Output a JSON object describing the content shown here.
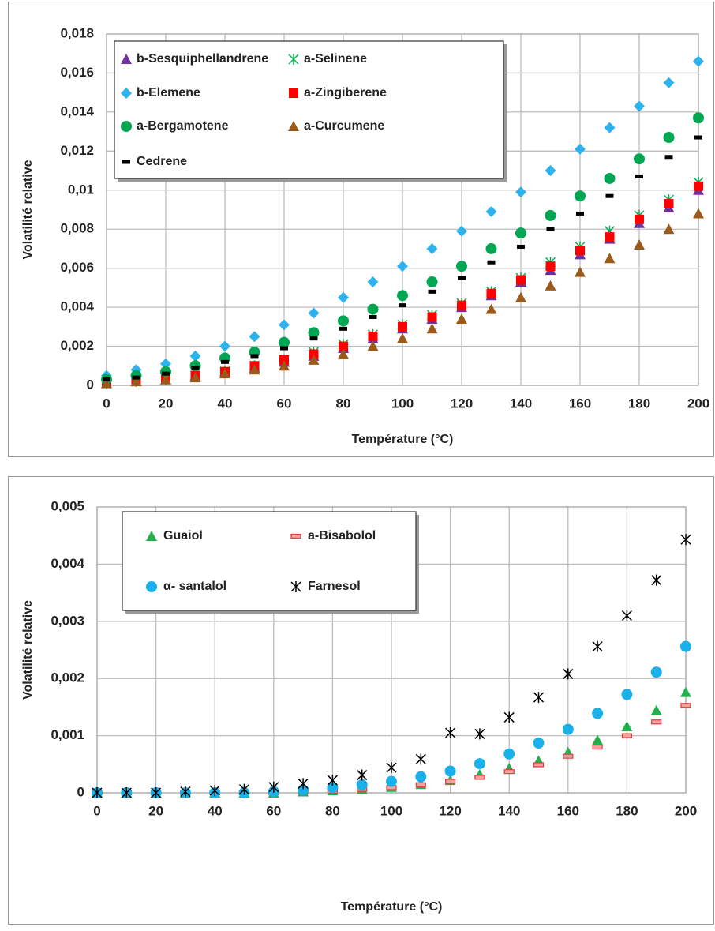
{
  "chart_data": [
    {
      "type": "scatter",
      "xlabel": "Température (°C)",
      "ylabel": "Volatilité relative",
      "x": [
        0,
        10,
        20,
        30,
        40,
        50,
        60,
        70,
        80,
        90,
        100,
        110,
        120,
        130,
        140,
        150,
        160,
        170,
        180,
        190,
        200
      ],
      "xlim": [
        0,
        200
      ],
      "xticks": [
        0,
        20,
        40,
        60,
        80,
        100,
        120,
        140,
        160,
        180,
        200
      ],
      "ylim": [
        0,
        0.018
      ],
      "yticks": [
        0,
        {
          "value": 0.002,
          "label": "0,002"
        },
        {
          "value": 0.004,
          "label": "0,004"
        },
        {
          "value": 0.006,
          "label": "0,006"
        },
        {
          "value": 0.008,
          "label": "0,008"
        },
        {
          "value": 0.01,
          "label": "0,01"
        },
        {
          "value": 0.012,
          "label": "0,012"
        },
        {
          "value": 0.014,
          "label": "0,014"
        },
        {
          "value": 0.016,
          "label": "0,016"
        },
        {
          "value": 0.018,
          "label": "0,018"
        }
      ],
      "grid": true,
      "legend": "upper left",
      "series": [
        {
          "name": "b-Sesquiphellandrene",
          "color": "#7030a0",
          "marker": "triangle",
          "values": [
            0.0001,
            0.0002,
            0.0003,
            0.0005,
            0.0007,
            0.0009,
            0.0012,
            0.0015,
            0.0019,
            0.0024,
            0.0029,
            0.0034,
            0.004,
            0.0046,
            0.0053,
            0.0059,
            0.0067,
            0.0075,
            0.0083,
            0.0091,
            0.01
          ]
        },
        {
          "name": "a-Selinene",
          "color": "#00b050",
          "marker": "asterisk",
          "values": [
            0.0001,
            0.0002,
            0.0003,
            0.0005,
            0.0007,
            0.001,
            0.0013,
            0.0017,
            0.0021,
            0.0026,
            0.0031,
            0.0036,
            0.0042,
            0.0048,
            0.0055,
            0.0063,
            0.0071,
            0.0079,
            0.0087,
            0.0095,
            0.0104
          ]
        },
        {
          "name": "b-Elemene",
          "color": "#2eb2ee",
          "marker": "diamond",
          "values": [
            0.0005,
            0.0008,
            0.0011,
            0.0015,
            0.002,
            0.0025,
            0.0031,
            0.0037,
            0.0045,
            0.0053,
            0.0061,
            0.007,
            0.0079,
            0.0089,
            0.0099,
            0.011,
            0.0121,
            0.0132,
            0.0143,
            0.0155,
            0.0166
          ]
        },
        {
          "name": "a-Zingiberene",
          "color": "#ff0000",
          "marker": "square",
          "values": [
            0.0001,
            0.0002,
            0.0003,
            0.0005,
            0.0007,
            0.001,
            0.0013,
            0.0016,
            0.002,
            0.0025,
            0.003,
            0.0035,
            0.0041,
            0.0047,
            0.0054,
            0.0061,
            0.0069,
            0.0076,
            0.0085,
            0.0093,
            0.0102
          ]
        },
        {
          "name": "a-Bergamotene",
          "color": "#00a651",
          "marker": "circle",
          "values": [
            0.0003,
            0.0005,
            0.0007,
            0.001,
            0.0014,
            0.0017,
            0.0022,
            0.0027,
            0.0033,
            0.0039,
            0.0046,
            0.0053,
            0.0061,
            0.007,
            0.0078,
            0.0087,
            0.0097,
            0.0106,
            0.0116,
            0.0127,
            0.0137
          ]
        },
        {
          "name": "a-Curcumene",
          "color": "#9c5a1a",
          "marker": "triangle",
          "values": [
            0.0001,
            0.0002,
            0.0003,
            0.0004,
            0.0006,
            0.0008,
            0.001,
            0.0013,
            0.0016,
            0.002,
            0.0024,
            0.0029,
            0.0034,
            0.0039,
            0.0045,
            0.0051,
            0.0058,
            0.0065,
            0.0072,
            0.008,
            0.0088
          ]
        },
        {
          "name": "Cedrene",
          "color": "#000000",
          "marker": "dash",
          "values": [
            0.0003,
            0.0004,
            0.0006,
            0.0009,
            0.0012,
            0.0015,
            0.0019,
            0.0024,
            0.0029,
            0.0035,
            0.0041,
            0.0048,
            0.0055,
            0.0063,
            0.0071,
            0.008,
            0.0088,
            0.0097,
            0.0107,
            0.0117,
            0.0127
          ]
        }
      ]
    },
    {
      "type": "scatter",
      "xlabel": "Température (°C)",
      "ylabel": "Volatilité relative",
      "x": [
        0,
        10,
        20,
        30,
        40,
        50,
        60,
        70,
        80,
        90,
        100,
        110,
        120,
        130,
        140,
        150,
        160,
        170,
        180,
        190,
        200
      ],
      "xlim": [
        0,
        200
      ],
      "xticks": [
        0,
        20,
        40,
        60,
        80,
        100,
        120,
        140,
        160,
        180,
        200
      ],
      "ylim": [
        0,
        0.005
      ],
      "yticks": [
        0,
        {
          "value": 0.001,
          "label": "0,001"
        },
        {
          "value": 0.002,
          "label": "0,002"
        },
        {
          "value": 0.003,
          "label": "0,003"
        },
        {
          "value": 0.004,
          "label": "0,004"
        },
        {
          "value": 0.005,
          "label": "0,005"
        }
      ],
      "grid": true,
      "legend": "upper left",
      "series": [
        {
          "name": "Guaiol",
          "color": "#22b04c",
          "marker": "triangle",
          "values": [
            0,
            0,
            0,
            0,
            0,
            0,
            0,
            2e-05,
            4e-05,
            6e-05,
            0.0001,
            0.00015,
            0.00022,
            0.00032,
            0.00043,
            0.00056,
            0.00071,
            0.00092,
            0.00116,
            0.00144,
            0.00176
          ]
        },
        {
          "name": "a-Bisabolol",
          "color": "#e03c3c",
          "marker": "outlined-dash",
          "values": [
            0,
            0,
            0,
            0,
            0,
            0,
            0,
            2e-05,
            3e-05,
            6e-05,
            9e-05,
            0.00014,
            0.0002,
            0.00027,
            0.00037,
            0.00049,
            0.00064,
            0.0008,
            0.001,
            0.00124,
            0.00153
          ]
        },
        {
          "name": "α- santalol",
          "color": "#1ab0ea",
          "marker": "circle",
          "values": [
            0,
            0,
            0,
            0,
            0,
            0,
            2e-05,
            5e-05,
            9e-05,
            0.00014,
            0.0002,
            0.00028,
            0.00038,
            0.00051,
            0.00068,
            0.00087,
            0.00111,
            0.00139,
            0.00172,
            0.00211,
            0.00256
          ]
        },
        {
          "name": "Farnesol",
          "color": "#000000",
          "marker": "asterisk",
          "values": [
            0,
            0,
            0,
            2e-05,
            4e-05,
            6e-05,
            0.0001,
            0.00016,
            0.00022,
            0.00031,
            0.00044,
            0.00059,
            0.00105,
            0.00103,
            0.00132,
            0.00167,
            0.00208,
            0.00256,
            0.0031,
            0.00372,
            0.00443
          ]
        }
      ]
    }
  ]
}
